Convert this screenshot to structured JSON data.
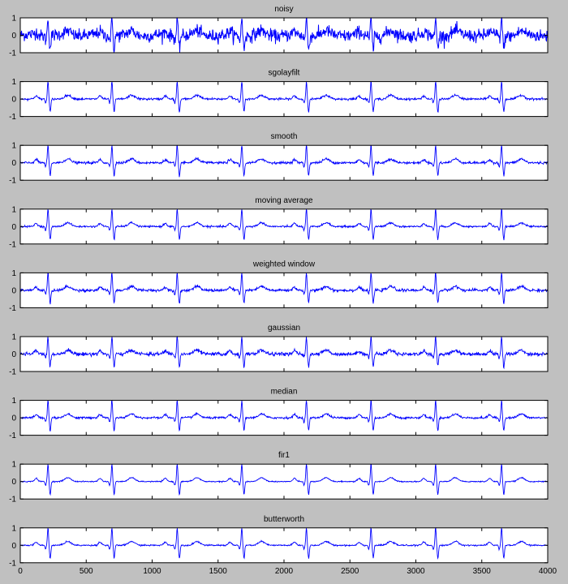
{
  "figure": {
    "background": "#c0c0c0",
    "line_color": "#0000ff"
  },
  "chart_data": [
    {
      "type": "line",
      "title": "noisy",
      "xlim": [
        0,
        4000
      ],
      "ylim": [
        -1,
        1
      ],
      "yticks": [
        -1,
        0,
        1
      ],
      "color": "#0000ff",
      "noise": 0.18,
      "show_xticks": false
    },
    {
      "type": "line",
      "title": "sgolayfilt",
      "xlim": [
        0,
        4000
      ],
      "ylim": [
        -1,
        1
      ],
      "yticks": [
        -1,
        0,
        1
      ],
      "color": "#0000ff",
      "noise": 0.03,
      "show_xticks": false
    },
    {
      "type": "line",
      "title": "smooth",
      "xlim": [
        0,
        4000
      ],
      "ylim": [
        -1,
        1
      ],
      "yticks": [
        -1,
        0,
        1
      ],
      "color": "#0000ff",
      "noise": 0.035,
      "show_xticks": false
    },
    {
      "type": "line",
      "title": "moving average",
      "xlim": [
        0,
        4000
      ],
      "ylim": [
        -1,
        1
      ],
      "yticks": [
        -1,
        0,
        1
      ],
      "color": "#0000ff",
      "noise": 0.025,
      "show_xticks": false
    },
    {
      "type": "line",
      "title": "weighted window",
      "xlim": [
        0,
        4000
      ],
      "ylim": [
        -1,
        1
      ],
      "yticks": [
        -1,
        0,
        1
      ],
      "color": "#0000ff",
      "noise": 0.04,
      "show_xticks": false
    },
    {
      "type": "line",
      "title": "gaussian",
      "xlim": [
        0,
        4000
      ],
      "ylim": [
        -1,
        1
      ],
      "yticks": [
        -1,
        0,
        1
      ],
      "color": "#0000ff",
      "noise": 0.05,
      "show_xticks": false
    },
    {
      "type": "line",
      "title": "median",
      "xlim": [
        0,
        4000
      ],
      "ylim": [
        -1,
        1
      ],
      "yticks": [
        -1,
        0,
        1
      ],
      "color": "#0000ff",
      "noise": 0.03,
      "show_xticks": false
    },
    {
      "type": "line",
      "title": "fir1",
      "xlim": [
        0,
        4000
      ],
      "ylim": [
        -1,
        1
      ],
      "yticks": [
        -1,
        0,
        1
      ],
      "color": "#0000ff",
      "noise": 0.015,
      "show_xticks": false
    },
    {
      "type": "line",
      "title": "butterworth",
      "xlim": [
        0,
        4000
      ],
      "ylim": [
        -1,
        1
      ],
      "yticks": [
        -1,
        0,
        1
      ],
      "color": "#0000ff",
      "noise": 0.02,
      "show_xticks": true,
      "xticks": [
        0,
        500,
        1000,
        1500,
        2000,
        2500,
        3000,
        3500,
        4000
      ]
    }
  ],
  "signal": {
    "beat_x": [
      210,
      695,
      1190,
      1680,
      2170,
      2660,
      3150,
      3650
    ],
    "samples": 4000
  }
}
